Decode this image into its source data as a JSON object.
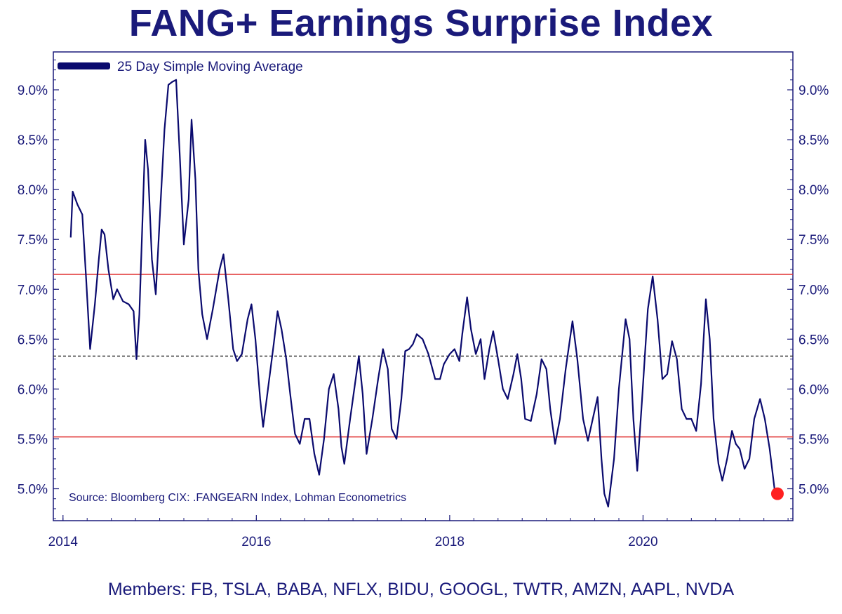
{
  "title": "FANG+ Earnings Surprise Index",
  "members": "Members: FB, TSLA, BABA, NFLX, BIDU, GOOGL, TWTR, AMZN, AAPL, NVDA",
  "colors": {
    "text": "#1a1a7a",
    "line": "#0a0a6e",
    "reference": "#e03030",
    "mean": "#333333",
    "marker": "#ff2020"
  },
  "chart_data": {
    "type": "line",
    "title": "FANG+ Earnings Surprise Index",
    "legend": {
      "label": "25 Day Simple Moving Average",
      "placement": "top-left"
    },
    "annotation": "Source: Bloomberg CIX: .FANGEARN Index, Lohman Econometrics",
    "x_ticks": [
      "2014",
      "2016",
      "2018",
      "2020"
    ],
    "x_tick_values": [
      2014,
      2016,
      2018,
      2020
    ],
    "y_ticks": [
      "5.0%",
      "5.5%",
      "6.0%",
      "6.5%",
      "7.0%",
      "7.5%",
      "8.0%",
      "8.5%",
      "9.0%"
    ],
    "y_tick_values": [
      5.0,
      5.5,
      6.0,
      6.5,
      7.0,
      7.5,
      8.0,
      8.5,
      9.0
    ],
    "xlim": [
      2013.9,
      2021.55
    ],
    "ylim": [
      4.68,
      9.38
    ],
    "grid": false,
    "reference_lines": [
      {
        "y": 7.15,
        "style": "solid",
        "color": "#e03030"
      },
      {
        "y": 6.33,
        "style": "dashed",
        "color": "#333333"
      },
      {
        "y": 5.52,
        "style": "solid",
        "color": "#e03030"
      }
    ],
    "highlight_point": {
      "x": 2021.39,
      "y": 4.95
    },
    "series": [
      {
        "values": [
          [
            2014.08,
            7.52
          ],
          [
            2014.1,
            7.98
          ],
          [
            2014.15,
            7.85
          ],
          [
            2014.2,
            7.75
          ],
          [
            2014.24,
            7.1
          ],
          [
            2014.28,
            6.4
          ],
          [
            2014.33,
            6.85
          ],
          [
            2014.37,
            7.3
          ],
          [
            2014.4,
            7.6
          ],
          [
            2014.43,
            7.55
          ],
          [
            2014.47,
            7.2
          ],
          [
            2014.52,
            6.9
          ],
          [
            2014.56,
            7.0
          ],
          [
            2014.62,
            6.88
          ],
          [
            2014.68,
            6.85
          ],
          [
            2014.73,
            6.78
          ],
          [
            2014.76,
            6.3
          ],
          [
            2014.79,
            6.75
          ],
          [
            2014.85,
            8.5
          ],
          [
            2014.88,
            8.2
          ],
          [
            2014.92,
            7.3
          ],
          [
            2014.96,
            6.95
          ],
          [
            2015.0,
            7.7
          ],
          [
            2015.05,
            8.6
          ],
          [
            2015.09,
            9.05
          ],
          [
            2015.13,
            9.08
          ],
          [
            2015.17,
            9.1
          ],
          [
            2015.21,
            8.3
          ],
          [
            2015.25,
            7.45
          ],
          [
            2015.3,
            7.9
          ],
          [
            2015.33,
            8.7
          ],
          [
            2015.37,
            8.1
          ],
          [
            2015.4,
            7.2
          ],
          [
            2015.44,
            6.75
          ],
          [
            2015.49,
            6.5
          ],
          [
            2015.55,
            6.8
          ],
          [
            2015.62,
            7.2
          ],
          [
            2015.66,
            7.35
          ],
          [
            2015.71,
            6.9
          ],
          [
            2015.76,
            6.4
          ],
          [
            2015.8,
            6.28
          ],
          [
            2015.85,
            6.35
          ],
          [
            2015.91,
            6.7
          ],
          [
            2015.95,
            6.85
          ],
          [
            2015.99,
            6.5
          ],
          [
            2016.04,
            5.9
          ],
          [
            2016.07,
            5.62
          ],
          [
            2016.12,
            6.0
          ],
          [
            2016.18,
            6.45
          ],
          [
            2016.22,
            6.78
          ],
          [
            2016.26,
            6.6
          ],
          [
            2016.31,
            6.3
          ],
          [
            2016.35,
            5.95
          ],
          [
            2016.4,
            5.55
          ],
          [
            2016.45,
            5.45
          ],
          [
            2016.5,
            5.7
          ],
          [
            2016.55,
            5.7
          ],
          [
            2016.6,
            5.35
          ],
          [
            2016.65,
            5.14
          ],
          [
            2016.7,
            5.5
          ],
          [
            2016.75,
            6.0
          ],
          [
            2016.8,
            6.15
          ],
          [
            2016.85,
            5.8
          ],
          [
            2016.88,
            5.42
          ],
          [
            2016.91,
            5.25
          ],
          [
            2016.97,
            5.7
          ],
          [
            2017.02,
            6.05
          ],
          [
            2017.06,
            6.33
          ],
          [
            2017.1,
            5.95
          ],
          [
            2017.14,
            5.35
          ],
          [
            2017.2,
            5.7
          ],
          [
            2017.26,
            6.1
          ],
          [
            2017.31,
            6.4
          ],
          [
            2017.36,
            6.2
          ],
          [
            2017.4,
            5.6
          ],
          [
            2017.45,
            5.5
          ],
          [
            2017.5,
            5.9
          ],
          [
            2017.54,
            6.38
          ],
          [
            2017.58,
            6.4
          ],
          [
            2017.62,
            6.45
          ],
          [
            2017.66,
            6.55
          ],
          [
            2017.72,
            6.5
          ],
          [
            2017.78,
            6.35
          ],
          [
            2017.85,
            6.1
          ],
          [
            2017.9,
            6.1
          ],
          [
            2017.94,
            6.25
          ],
          [
            2018.0,
            6.35
          ],
          [
            2018.05,
            6.4
          ],
          [
            2018.1,
            6.28
          ],
          [
            2018.13,
            6.55
          ],
          [
            2018.18,
            6.92
          ],
          [
            2018.22,
            6.6
          ],
          [
            2018.27,
            6.35
          ],
          [
            2018.32,
            6.5
          ],
          [
            2018.36,
            6.1
          ],
          [
            2018.41,
            6.4
          ],
          [
            2018.45,
            6.58
          ],
          [
            2018.5,
            6.3
          ],
          [
            2018.55,
            6.0
          ],
          [
            2018.6,
            5.9
          ],
          [
            2018.66,
            6.15
          ],
          [
            2018.7,
            6.35
          ],
          [
            2018.74,
            6.1
          ],
          [
            2018.78,
            5.7
          ],
          [
            2018.84,
            5.68
          ],
          [
            2018.9,
            5.95
          ],
          [
            2018.95,
            6.3
          ],
          [
            2019.0,
            6.2
          ],
          [
            2019.04,
            5.8
          ],
          [
            2019.09,
            5.45
          ],
          [
            2019.14,
            5.7
          ],
          [
            2019.2,
            6.2
          ],
          [
            2019.27,
            6.68
          ],
          [
            2019.32,
            6.3
          ],
          [
            2019.38,
            5.7
          ],
          [
            2019.43,
            5.48
          ],
          [
            2019.48,
            5.7
          ],
          [
            2019.53,
            5.92
          ],
          [
            2019.57,
            5.3
          ],
          [
            2019.6,
            4.95
          ],
          [
            2019.64,
            4.82
          ],
          [
            2019.7,
            5.3
          ],
          [
            2019.75,
            6.0
          ],
          [
            2019.82,
            6.7
          ],
          [
            2019.86,
            6.5
          ],
          [
            2019.9,
            5.7
          ],
          [
            2019.94,
            5.18
          ],
          [
            2019.99,
            5.9
          ],
          [
            2020.05,
            6.8
          ],
          [
            2020.1,
            7.13
          ],
          [
            2020.15,
            6.7
          ],
          [
            2020.2,
            6.1
          ],
          [
            2020.25,
            6.15
          ],
          [
            2020.3,
            6.48
          ],
          [
            2020.35,
            6.3
          ],
          [
            2020.4,
            5.8
          ],
          [
            2020.45,
            5.7
          ],
          [
            2020.5,
            5.7
          ],
          [
            2020.55,
            5.58
          ],
          [
            2020.6,
            6.05
          ],
          [
            2020.65,
            6.9
          ],
          [
            2020.69,
            6.5
          ],
          [
            2020.73,
            5.7
          ],
          [
            2020.78,
            5.25
          ],
          [
            2020.82,
            5.08
          ],
          [
            2020.87,
            5.3
          ],
          [
            2020.92,
            5.58
          ],
          [
            2020.96,
            5.45
          ],
          [
            2021.0,
            5.4
          ],
          [
            2021.05,
            5.2
          ],
          [
            2021.1,
            5.3
          ],
          [
            2021.15,
            5.7
          ],
          [
            2021.21,
            5.9
          ],
          [
            2021.26,
            5.7
          ],
          [
            2021.31,
            5.4
          ],
          [
            2021.36,
            5.0
          ],
          [
            2021.39,
            4.95
          ]
        ]
      }
    ]
  }
}
